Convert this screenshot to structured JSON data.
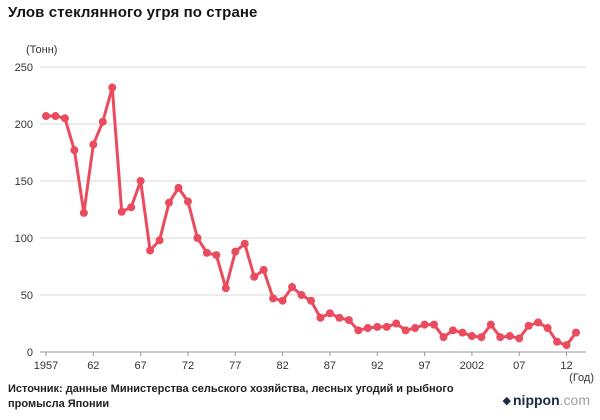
{
  "source": {
    "text": "Источник: данные Министерства сельского хозяйства, лесных угодий и рыбного промысла Японии"
  },
  "logo": {
    "diamond": "◆",
    "name": "nippon",
    "tld": ".com"
  },
  "chart_data": {
    "type": "line",
    "title": "Улов стеклянного угря по стране",
    "ylabel": "(Тонн)",
    "xlabel": "(Год)",
    "ylim": [
      0,
      250
    ],
    "y_ticks": [
      0,
      50,
      100,
      150,
      200,
      250
    ],
    "x_tick_years": [
      1957,
      1962,
      1967,
      1972,
      1977,
      1982,
      1987,
      1992,
      1997,
      2002,
      2007,
      2012
    ],
    "x_tick_labels": [
      "1957",
      "62",
      "67",
      "72",
      "77",
      "82",
      "87",
      "92",
      "97",
      "2002",
      "07",
      "12"
    ],
    "line_color": "#ea4b5e",
    "grid_color": "#d8d8d8",
    "axis_color": "#999999",
    "years": [
      1957,
      1958,
      1959,
      1960,
      1961,
      1962,
      1963,
      1964,
      1965,
      1966,
      1967,
      1968,
      1969,
      1970,
      1971,
      1972,
      1973,
      1974,
      1975,
      1976,
      1977,
      1978,
      1979,
      1980,
      1981,
      1982,
      1983,
      1984,
      1985,
      1986,
      1987,
      1988,
      1989,
      1990,
      1991,
      1992,
      1993,
      1994,
      1995,
      1996,
      1997,
      1998,
      1999,
      2000,
      2001,
      2002,
      2003,
      2004,
      2005,
      2006,
      2007,
      2008,
      2009,
      2010,
      2011,
      2012,
      2013
    ],
    "values": [
      207,
      207,
      205,
      177,
      122,
      182,
      202,
      232,
      123,
      127,
      150,
      89,
      98,
      131,
      144,
      132,
      100,
      87,
      85,
      56,
      88,
      95,
      66,
      72,
      47,
      45,
      57,
      50,
      45,
      30,
      34,
      30,
      28,
      19,
      21,
      22,
      22,
      25,
      19,
      21,
      24,
      24,
      13,
      19,
      17,
      14,
      13,
      24,
      13,
      14,
      12,
      23,
      26,
      21,
      9,
      6,
      17
    ]
  }
}
